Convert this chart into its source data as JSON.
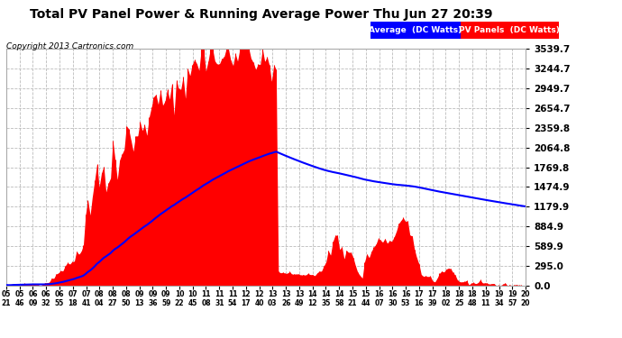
{
  "title": "Total PV Panel Power & Running Average Power Thu Jun 27 20:39",
  "copyright": "Copyright 2013 Cartronics.com",
  "legend_entries": [
    "Average  (DC Watts)",
    "PV Panels  (DC Watts)"
  ],
  "yticks": [
    0.0,
    295.0,
    589.9,
    884.9,
    1179.9,
    1474.9,
    1769.8,
    2064.8,
    2359.8,
    2654.7,
    2949.7,
    3244.7,
    3539.7
  ],
  "ymax": 3539.7,
  "bg_color": "#ffffff",
  "grid_color": "#bbbbbb",
  "bar_color": "#ff0000",
  "line_color": "#0000ff",
  "xtick_labels": [
    "05:21",
    "05:46",
    "06:09",
    "06:32",
    "06:55",
    "07:18",
    "07:41",
    "08:04",
    "08:27",
    "08:50",
    "09:13",
    "09:36",
    "09:59",
    "10:22",
    "10:45",
    "11:08",
    "11:31",
    "11:54",
    "12:17",
    "12:40",
    "13:03",
    "13:26",
    "13:49",
    "14:12",
    "14:35",
    "14:58",
    "15:21",
    "15:44",
    "16:07",
    "16:30",
    "16:53",
    "17:16",
    "17:39",
    "18:02",
    "18:25",
    "18:48",
    "19:11",
    "19:34",
    "19:57",
    "20:20"
  ],
  "n_points": 230,
  "seed": 42
}
